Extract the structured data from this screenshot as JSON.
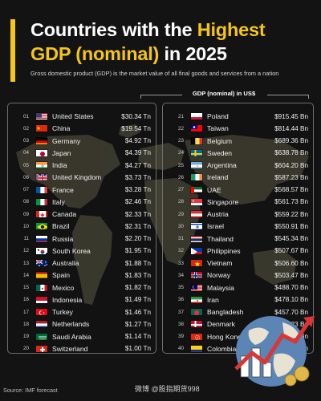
{
  "header": {
    "title_line1_white": "Countries with the ",
    "title_line1_highlight": "Highest",
    "title_line2_highlight": "GDP (nominal)",
    "title_line2_white": " in 2025",
    "subtitle": "Gross domestic product (GDP) is the market value of all final goods and services from a nation",
    "column_header": "GDP (nominal) in US$"
  },
  "colors": {
    "accent": "#f5c518",
    "background": "#131313",
    "map": "#4a4838"
  },
  "left_rows": [
    {
      "rank": "01",
      "flag": "us-flag",
      "country": "United States",
      "value": "$30.34 Tn"
    },
    {
      "rank": "02",
      "flag": "cn-flag",
      "country": "China",
      "value": "$19.54 Tn"
    },
    {
      "rank": "03",
      "flag": "de-flag",
      "country": "Germany",
      "value": "$4.92 Tn"
    },
    {
      "rank": "04",
      "flag": "jp-flag",
      "country": "Japan",
      "value": "$4.39 Tn"
    },
    {
      "rank": "05",
      "flag": "in-flag",
      "country": "India",
      "value": "$4.27 Tn"
    },
    {
      "rank": "06",
      "flag": "uk-flag",
      "country": "United Kingdom",
      "value": "$3.73 Tn"
    },
    {
      "rank": "07",
      "flag": "fr-flag",
      "country": "France",
      "value": "$3.28 Tn"
    },
    {
      "rank": "08",
      "flag": "it-flag",
      "country": "Italy",
      "value": "$2.46 Tn"
    },
    {
      "rank": "09",
      "flag": "ca-flag",
      "country": "Canada",
      "value": "$2.33 Tn"
    },
    {
      "rank": "10",
      "flag": "br-flag",
      "country": "Brazil",
      "value": "$2.31 Tn"
    },
    {
      "rank": "11",
      "flag": "ru-flag",
      "country": "Russia",
      "value": "$2.20 Tn"
    },
    {
      "rank": "12",
      "flag": "kr-flag",
      "country": "South Korea",
      "value": "$1.95 Tn"
    },
    {
      "rank": "13",
      "flag": "au-flag",
      "country": "Australia",
      "value": "$1.88 Tn"
    },
    {
      "rank": "14",
      "flag": "es-flag",
      "country": "Spain",
      "value": "$1.83 Tn"
    },
    {
      "rank": "15",
      "flag": "mx-flag",
      "country": "Mexico",
      "value": "$1.82 Tn"
    },
    {
      "rank": "16",
      "flag": "id-flag",
      "country": "Indonesia",
      "value": "$1.49 Tn"
    },
    {
      "rank": "17",
      "flag": "tr-flag",
      "country": "Turkey",
      "value": "$1.46 Tn"
    },
    {
      "rank": "18",
      "flag": "nl-flag",
      "country": "Netherlands",
      "value": "$1.27 Tn"
    },
    {
      "rank": "19",
      "flag": "sa-flag",
      "country": "Saudi Arabia",
      "value": "$1.14 Tn"
    },
    {
      "rank": "20",
      "flag": "ch-flag",
      "country": "Switzerland",
      "value": "$1.00 Tn"
    }
  ],
  "right_rows": [
    {
      "rank": "21",
      "flag": "pl-flag",
      "country": "Poland",
      "value": "$915.45 Bn"
    },
    {
      "rank": "22",
      "flag": "tw-flag",
      "country": "Taiwan",
      "value": "$814.44 Bn"
    },
    {
      "rank": "23",
      "flag": "be-flag",
      "country": "Belgium",
      "value": "$689.36 Bn"
    },
    {
      "rank": "24",
      "flag": "se-flag",
      "country": "Sweden",
      "value": "$638.78 Bn"
    },
    {
      "rank": "25",
      "flag": "ar-flag",
      "country": "Argentina",
      "value": "$604.20 Bn"
    },
    {
      "rank": "26",
      "flag": "ie-flag",
      "country": "Ireland",
      "value": "$587.23 Bn"
    },
    {
      "rank": "27",
      "flag": "ae-flag",
      "country": "UAE",
      "value": "$568.57 Bn"
    },
    {
      "rank": "28",
      "flag": "sg-flag",
      "country": "Singapore",
      "value": "$561.73 Bn"
    },
    {
      "rank": "29",
      "flag": "at-flag",
      "country": "Austria",
      "value": "$559.22 Bn"
    },
    {
      "rank": "30",
      "flag": "il-flag",
      "country": "Israel",
      "value": "$550.91 Bn"
    },
    {
      "rank": "31",
      "flag": "th-flag",
      "country": "Thailand",
      "value": "$545.34 Bn"
    },
    {
      "rank": "32",
      "flag": "ph-flag",
      "country": "Philippines",
      "value": "$507.67 Bn"
    },
    {
      "rank": "33",
      "flag": "vn-flag",
      "country": "Vietnam",
      "value": "$506.60 Bn"
    },
    {
      "rank": "34",
      "flag": "no-flag",
      "country": "Norway",
      "value": "$503.47 Bn"
    },
    {
      "rank": "35",
      "flag": "my-flag",
      "country": "Malaysia",
      "value": "$488.70 Bn"
    },
    {
      "rank": "36",
      "flag": "ir-flag",
      "country": "Iran",
      "value": "$478.10 Bn"
    },
    {
      "rank": "37",
      "flag": "bd-flag",
      "country": "Bangladesh",
      "value": "$457.70 Bn"
    },
    {
      "rank": "38",
      "flag": "dk-flag",
      "country": "Denmark",
      "value": "$432.23 Bn"
    },
    {
      "rank": "39",
      "flag": "hk-flag",
      "country": "Hong Kong",
      "value": "$422.06 Bn"
    },
    {
      "rank": "40",
      "flag": "co-flag",
      "country": "Colombia",
      "value": "$419.33 Bn"
    }
  ],
  "footer": {
    "source": "Source:  IMF forecast",
    "watermark": "微博 @股指期货998"
  }
}
